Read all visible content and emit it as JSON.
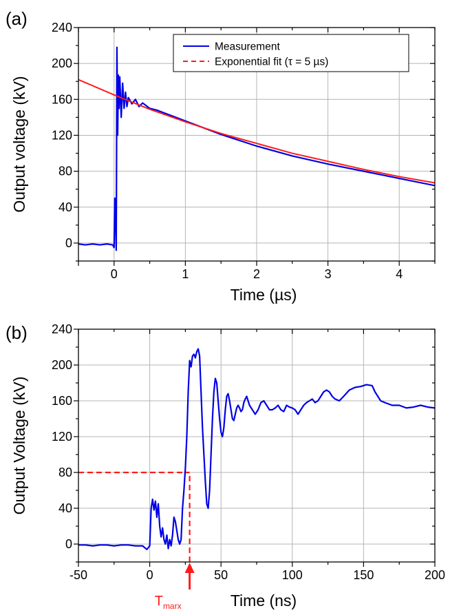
{
  "chart_data": [
    {
      "panel_label": "(a)",
      "type": "line",
      "xlabel": "Time (µs)",
      "ylabel": "Output voltage (kV)",
      "xlim": [
        -0.5,
        4.5
      ],
      "ylim": [
        -20,
        240
      ],
      "x_ticks": [
        0,
        1,
        2,
        3,
        4
      ],
      "y_ticks": [
        0,
        40,
        80,
        120,
        160,
        200,
        240
      ],
      "grid": true,
      "legend_position": "top-right",
      "series": [
        {
          "name": "Measurement",
          "color": "#0000e6",
          "style": "solid",
          "x": [
            -0.5,
            -0.4,
            -0.3,
            -0.2,
            -0.1,
            -0.02,
            0.0,
            0.01,
            0.02,
            0.03,
            0.035,
            0.04,
            0.05,
            0.06,
            0.07,
            0.08,
            0.1,
            0.12,
            0.14,
            0.16,
            0.18,
            0.2,
            0.25,
            0.3,
            0.35,
            0.4,
            0.5,
            0.6,
            0.7,
            0.8,
            1.0,
            1.5,
            2.0,
            2.5,
            3.0,
            3.5,
            4.0,
            4.5
          ],
          "y": [
            -1,
            -2,
            -1,
            -2,
            -1,
            -2,
            -5,
            50,
            30,
            -8,
            100,
            218,
            120,
            187,
            150,
            185,
            140,
            178,
            150,
            168,
            152,
            162,
            155,
            160,
            152,
            156,
            150,
            148,
            145,
            142,
            136,
            121,
            108,
            97,
            88,
            80,
            72,
            64
          ]
        },
        {
          "name": "Exponential fit (τ = 5 µs)",
          "color": "#ff1a1a",
          "style": "dashed",
          "tau_us": 5,
          "x": [
            -0.5,
            0,
            0.5,
            1,
            1.5,
            2,
            2.5,
            3,
            3.5,
            4,
            4.5
          ],
          "y": [
            182,
            165,
            149,
            135,
            122,
            111,
            100,
            91,
            82,
            74,
            67
          ]
        }
      ]
    },
    {
      "panel_label": "(b)",
      "type": "line",
      "xlabel": "Time (ns)",
      "ylabel": "Output Voltage (kV)",
      "xlim": [
        -50,
        200
      ],
      "ylim": [
        -20,
        240
      ],
      "x_ticks": [
        -50,
        0,
        50,
        100,
        150,
        200
      ],
      "y_ticks": [
        0,
        40,
        80,
        120,
        160,
        200,
        240
      ],
      "grid": true,
      "series": [
        {
          "name": "",
          "color": "#0000e6",
          "style": "solid",
          "x": [
            -50,
            -45,
            -40,
            -35,
            -30,
            -25,
            -20,
            -15,
            -10,
            -5,
            -2,
            0,
            1,
            2,
            3,
            4,
            5,
            6,
            7,
            8,
            9,
            10,
            11,
            12,
            13,
            14,
            15,
            16,
            17,
            18,
            19,
            20,
            21,
            22,
            23,
            24,
            25,
            26,
            27,
            28,
            29,
            30,
            31,
            32,
            33,
            34,
            35,
            36,
            37,
            38,
            39,
            40,
            41,
            42,
            43,
            44,
            45,
            46,
            47,
            48,
            49,
            50,
            51,
            52,
            53,
            54,
            55,
            56,
            57,
            58,
            59,
            60,
            61,
            62,
            63,
            64,
            65,
            66,
            67,
            68,
            70,
            72,
            74,
            76,
            78,
            80,
            82,
            84,
            86,
            88,
            90,
            92,
            94,
            96,
            98,
            100,
            102,
            104,
            106,
            108,
            110,
            112,
            114,
            116,
            118,
            120,
            122,
            124,
            126,
            128,
            130,
            133,
            136,
            140,
            144,
            148,
            152,
            156,
            158,
            160,
            162,
            165,
            170,
            175,
            180,
            185,
            190,
            195,
            200
          ],
          "y": [
            -1,
            -1,
            -2,
            -1,
            -1,
            -2,
            -1,
            -1,
            -2,
            -2,
            -6,
            -2,
            40,
            50,
            38,
            48,
            30,
            45,
            20,
            8,
            18,
            5,
            0,
            10,
            -5,
            5,
            -2,
            10,
            30,
            25,
            15,
            5,
            0,
            5,
            40,
            60,
            85,
            120,
            170,
            205,
            198,
            210,
            212,
            208,
            215,
            218,
            210,
            170,
            130,
            100,
            70,
            45,
            40,
            60,
            100,
            140,
            170,
            185,
            180,
            160,
            140,
            125,
            120,
            130,
            150,
            165,
            168,
            160,
            150,
            140,
            138,
            145,
            152,
            155,
            152,
            148,
            150,
            158,
            162,
            165,
            155,
            150,
            145,
            150,
            158,
            160,
            155,
            150,
            150,
            152,
            155,
            150,
            148,
            155,
            153,
            152,
            150,
            145,
            150,
            155,
            158,
            160,
            162,
            158,
            160,
            165,
            170,
            172,
            170,
            165,
            162,
            160,
            165,
            172,
            175,
            176,
            178,
            177,
            170,
            165,
            160,
            158,
            155,
            155,
            152,
            153,
            155,
            153,
            152
          ]
        }
      ],
      "reference_lines": [
        {
          "y": 80,
          "x_from": -50,
          "x_to": 28,
          "color": "#ff1a1a",
          "style": "dashed"
        },
        {
          "x": 28,
          "y_from": -20,
          "y_to": 80,
          "color": "#ff1a1a",
          "style": "dashed"
        }
      ],
      "annotation": {
        "text": "T",
        "subscript": "marx",
        "x": 28,
        "color": "#ff1a1a"
      }
    }
  ]
}
